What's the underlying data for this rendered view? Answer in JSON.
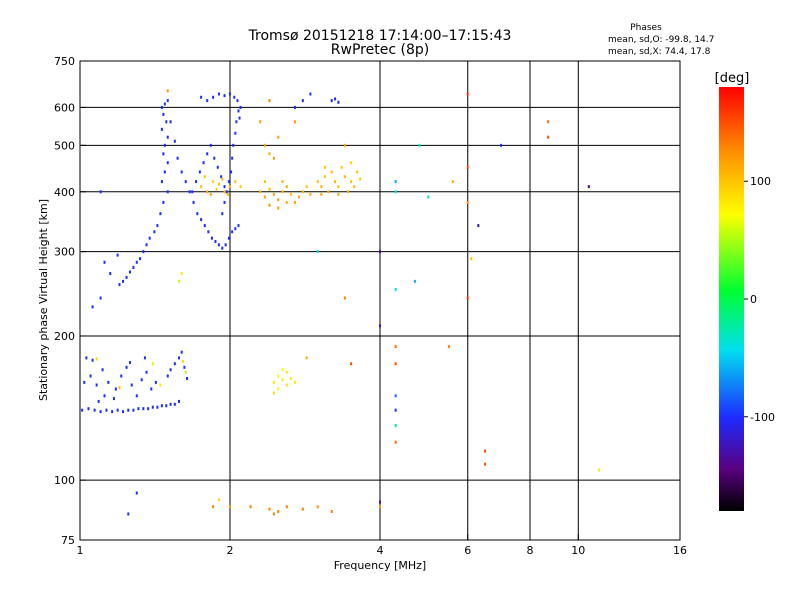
{
  "chart_data": {
    "type": "scatter",
    "title": "Tromsø 20151218 17:14:00–17:15:43",
    "subtitle": "RwPretec (8p)",
    "stats": {
      "heading": "Phases",
      "line1": "mean, sd,O: -99.8, 14.7",
      "line2": "mean, sd,X:  74.4, 17.8"
    },
    "xlabel": "Frequency [MHz]",
    "ylabel": "Stationary phase Virtual Height [km]",
    "x_scale": "log",
    "y_scale": "log",
    "xlim": [
      1,
      16
    ],
    "ylim": [
      75,
      750
    ],
    "x_ticks": [
      1,
      2,
      4,
      6,
      8,
      10,
      16
    ],
    "x_tick_labels": [
      "1",
      "2",
      "4",
      "6",
      "8",
      "10",
      "16"
    ],
    "x_grid": [
      2,
      4,
      6,
      8,
      10
    ],
    "y_ticks": [
      75,
      100,
      200,
      300,
      400,
      500,
      600,
      750
    ],
    "y_tick_labels": [
      "75",
      "100",
      "200",
      "300",
      "400",
      "500",
      "600",
      "750"
    ],
    "y_grid": [
      100,
      200,
      300,
      400,
      500,
      600
    ],
    "grid": true,
    "colorbar": {
      "label": "[deg]",
      "range": [
        -180,
        180
      ],
      "ticks": [
        100,
        0,
        -100
      ],
      "tick_labels": [
        "100",
        "0",
        "-100"
      ]
    },
    "points": [
      [
        1.01,
        140,
        -100
      ],
      [
        1.04,
        141,
        -100
      ],
      [
        1.07,
        140,
        -100
      ],
      [
        1.1,
        139,
        -100
      ],
      [
        1.13,
        140,
        -100
      ],
      [
        1.16,
        139,
        -100
      ],
      [
        1.19,
        140,
        -100
      ],
      [
        1.22,
        139,
        -100
      ],
      [
        1.25,
        140,
        -100
      ],
      [
        1.28,
        140,
        -100
      ],
      [
        1.31,
        141,
        -100
      ],
      [
        1.34,
        141,
        -100
      ],
      [
        1.37,
        141,
        -100
      ],
      [
        1.4,
        142,
        -100
      ],
      [
        1.43,
        142,
        -100
      ],
      [
        1.46,
        143,
        -100
      ],
      [
        1.49,
        143,
        -100
      ],
      [
        1.52,
        144,
        -100
      ],
      [
        1.55,
        144,
        -100
      ],
      [
        1.58,
        146,
        -100
      ],
      [
        1.02,
        160,
        -100
      ],
      [
        1.05,
        165,
        -100
      ],
      [
        1.08,
        158,
        -100
      ],
      [
        1.11,
        170,
        -100
      ],
      [
        1.14,
        160,
        -100
      ],
      [
        1.18,
        155,
        -100
      ],
      [
        1.21,
        165,
        -100
      ],
      [
        1.24,
        172,
        -100
      ],
      [
        1.27,
        158,
        -100
      ],
      [
        1.3,
        150,
        -100
      ],
      [
        1.33,
        162,
        -100
      ],
      [
        1.36,
        168,
        -100
      ],
      [
        1.39,
        155,
        -100
      ],
      [
        1.42,
        160,
        -100
      ],
      [
        1.03,
        180,
        -100
      ],
      [
        1.06,
        178,
        -100
      ],
      [
        1.12,
        150,
        -100
      ],
      [
        1.17,
        148,
        -100
      ],
      [
        1.26,
        176,
        -100
      ],
      [
        1.35,
        180,
        -100
      ],
      [
        1.5,
        165,
        -100
      ],
      [
        1.52,
        170,
        -100
      ],
      [
        1.55,
        175,
        -100
      ],
      [
        1.58,
        180,
        -100
      ],
      [
        1.6,
        185,
        -100
      ],
      [
        1.62,
        172,
        -100
      ],
      [
        1.64,
        163,
        -100
      ],
      [
        1.63,
        168,
        50
      ],
      [
        1.61,
        177,
        90
      ],
      [
        1.45,
        158,
        80
      ],
      [
        1.4,
        175,
        60
      ],
      [
        1.08,
        179,
        90
      ],
      [
        1.2,
        156,
        100
      ],
      [
        1.09,
        146,
        -100
      ],
      [
        1.46,
        600,
        -100
      ],
      [
        1.48,
        610,
        -100
      ],
      [
        1.5,
        620,
        -100
      ],
      [
        1.47,
        580,
        -100
      ],
      [
        1.49,
        560,
        -100
      ],
      [
        1.46,
        540,
        -100
      ],
      [
        1.5,
        520,
        -100
      ],
      [
        1.48,
        500,
        -100
      ],
      [
        1.47,
        480,
        -100
      ],
      [
        1.5,
        460,
        -100
      ],
      [
        1.48,
        440,
        -100
      ],
      [
        1.46,
        420,
        -100
      ],
      [
        1.5,
        400,
        -100
      ],
      [
        1.47,
        380,
        -100
      ],
      [
        1.45,
        360,
        -100
      ],
      [
        1.43,
        340,
        -100
      ],
      [
        1.41,
        330,
        -100
      ],
      [
        1.38,
        320,
        -100
      ],
      [
        1.36,
        310,
        -100
      ],
      [
        1.34,
        300,
        -100
      ],
      [
        1.32,
        290,
        -100
      ],
      [
        1.3,
        285,
        -100
      ],
      [
        1.28,
        278,
        -100
      ],
      [
        1.26,
        272,
        -100
      ],
      [
        1.24,
        265,
        -100
      ],
      [
        1.22,
        260,
        -100
      ],
      [
        1.2,
        256,
        -100
      ],
      [
        1.52,
        560,
        -100
      ],
      [
        1.55,
        510,
        -100
      ],
      [
        1.57,
        470,
        -100
      ],
      [
        1.6,
        440,
        -100
      ],
      [
        1.63,
        420,
        -100
      ],
      [
        1.66,
        400,
        -100
      ],
      [
        1.69,
        380,
        -100
      ],
      [
        1.72,
        360,
        -100
      ],
      [
        1.75,
        350,
        -100
      ],
      [
        1.78,
        340,
        -100
      ],
      [
        1.81,
        330,
        -100
      ],
      [
        1.84,
        320,
        -100
      ],
      [
        1.87,
        315,
        -100
      ],
      [
        1.9,
        310,
        -100
      ],
      [
        1.93,
        305,
        -100
      ],
      [
        1.96,
        310,
        -100
      ],
      [
        1.99,
        320,
        -100
      ],
      [
        2.02,
        330,
        -100
      ],
      [
        2.05,
        335,
        -100
      ],
      [
        2.08,
        340,
        -100
      ],
      [
        1.75,
        630,
        -100
      ],
      [
        1.8,
        620,
        -100
      ],
      [
        1.85,
        630,
        -100
      ],
      [
        1.9,
        640,
        -100
      ],
      [
        1.95,
        635,
        -100
      ],
      [
        2.0,
        640,
        -100
      ],
      [
        2.04,
        630,
        -100
      ],
      [
        2.07,
        620,
        -100
      ],
      [
        2.08,
        590,
        -100
      ],
      [
        2.06,
        560,
        -100
      ],
      [
        2.05,
        530,
        -100
      ],
      [
        2.03,
        500,
        -100
      ],
      [
        2.02,
        470,
        -100
      ],
      [
        2.01,
        440,
        -100
      ],
      [
        1.99,
        420,
        -100
      ],
      [
        1.97,
        400,
        -100
      ],
      [
        1.95,
        380,
        -100
      ],
      [
        1.93,
        360,
        -100
      ],
      [
        2.1,
        600,
        -100
      ],
      [
        2.09,
        570,
        -100
      ],
      [
        1.68,
        400,
        -100
      ],
      [
        1.71,
        420,
        -100
      ],
      [
        1.74,
        440,
        -100
      ],
      [
        1.77,
        460,
        -100
      ],
      [
        1.8,
        480,
        -100
      ],
      [
        1.83,
        500,
        -100
      ],
      [
        1.86,
        470,
        -100
      ],
      [
        1.89,
        450,
        -100
      ],
      [
        1.92,
        430,
        -100
      ],
      [
        1.95,
        410,
        -100
      ],
      [
        1.1,
        240,
        -100
      ],
      [
        1.15,
        270,
        -100
      ],
      [
        1.06,
        230,
        -100
      ],
      [
        1.12,
        285,
        -100
      ],
      [
        1.58,
        260,
        60
      ],
      [
        1.6,
        270,
        80
      ],
      [
        1.1,
        400,
        -100
      ],
      [
        1.19,
        295,
        -100
      ],
      [
        2.7,
        600,
        -100
      ],
      [
        2.8,
        620,
        -100
      ],
      [
        2.9,
        640,
        -100
      ],
      [
        3.2,
        620,
        -100
      ],
      [
        3.25,
        625,
        -100
      ],
      [
        3.3,
        615,
        -100
      ],
      [
        1.75,
        410,
        100
      ],
      [
        1.8,
        400,
        110
      ],
      [
        1.85,
        420,
        90
      ],
      [
        1.9,
        415,
        100
      ],
      [
        1.95,
        400,
        105
      ],
      [
        2.0,
        410,
        110
      ],
      [
        2.05,
        420,
        100
      ],
      [
        2.1,
        410,
        95
      ],
      [
        1.78,
        430,
        100
      ],
      [
        1.83,
        395,
        110
      ],
      [
        1.88,
        405,
        95
      ],
      [
        1.93,
        425,
        100
      ],
      [
        1.98,
        395,
        110
      ],
      [
        2.3,
        400,
        110
      ],
      [
        2.35,
        390,
        115
      ],
      [
        2.4,
        405,
        100
      ],
      [
        2.45,
        395,
        110
      ],
      [
        2.5,
        385,
        120
      ],
      [
        2.55,
        400,
        105
      ],
      [
        2.6,
        410,
        110
      ],
      [
        2.65,
        395,
        100
      ],
      [
        2.7,
        380,
        115
      ],
      [
        2.75,
        390,
        110
      ],
      [
        2.8,
        400,
        105
      ],
      [
        2.85,
        410,
        100
      ],
      [
        2.9,
        395,
        110
      ],
      [
        2.4,
        375,
        120
      ],
      [
        2.5,
        370,
        115
      ],
      [
        2.6,
        380,
        110
      ],
      [
        2.35,
        420,
        100
      ],
      [
        2.55,
        420,
        105
      ],
      [
        3.0,
        420,
        100
      ],
      [
        3.05,
        410,
        105
      ],
      [
        3.1,
        430,
        95
      ],
      [
        3.15,
        400,
        110
      ],
      [
        3.2,
        440,
        100
      ],
      [
        3.25,
        420,
        105
      ],
      [
        3.3,
        410,
        100
      ],
      [
        3.35,
        450,
        95
      ],
      [
        3.4,
        430,
        105
      ],
      [
        3.45,
        400,
        110
      ],
      [
        3.5,
        420,
        100
      ],
      [
        3.55,
        410,
        105
      ],
      [
        3.6,
        440,
        100
      ],
      [
        3.65,
        425,
        95
      ],
      [
        3.1,
        450,
        100
      ],
      [
        3.3,
        395,
        110
      ],
      [
        3.5,
        460,
        90
      ],
      [
        3.05,
        395,
        110
      ],
      [
        2.35,
        500,
        115
      ],
      [
        2.4,
        480,
        110
      ],
      [
        2.45,
        470,
        120
      ],
      [
        2.5,
        520,
        115
      ],
      [
        2.3,
        560,
        120
      ],
      [
        2.4,
        620,
        130
      ],
      [
        2.7,
        560,
        120
      ],
      [
        3.4,
        500,
        115
      ],
      [
        1.5,
        650,
        120
      ],
      [
        2.45,
        160,
        80
      ],
      [
        2.5,
        165,
        75
      ],
      [
        2.55,
        162,
        80
      ],
      [
        2.6,
        158,
        85
      ],
      [
        2.65,
        163,
        80
      ],
      [
        2.5,
        155,
        75
      ],
      [
        2.6,
        168,
        80
      ],
      [
        2.55,
        170,
        70
      ],
      [
        2.7,
        160,
        80
      ],
      [
        2.45,
        152,
        85
      ],
      [
        1.85,
        88,
        130
      ],
      [
        2.0,
        88,
        120
      ],
      [
        2.2,
        88,
        130
      ],
      [
        2.4,
        87,
        130
      ],
      [
        2.5,
        86,
        130
      ],
      [
        2.6,
        88,
        130
      ],
      [
        2.8,
        87,
        130
      ],
      [
        3.0,
        88,
        125
      ],
      [
        3.2,
        86,
        130
      ],
      [
        2.45,
        85,
        130
      ],
      [
        1.9,
        91,
        90
      ],
      [
        1.3,
        94,
        -100
      ],
      [
        1.25,
        85,
        -100
      ],
      [
        4.3,
        190,
        140
      ],
      [
        4.3,
        175,
        150
      ],
      [
        4.3,
        150,
        -80
      ],
      [
        4.3,
        140,
        -100
      ],
      [
        4.3,
        130,
        -20
      ],
      [
        4.3,
        120,
        140
      ],
      [
        4.3,
        420,
        -60
      ],
      [
        4.3,
        400,
        -40
      ],
      [
        4.3,
        250,
        -40
      ],
      [
        4.0,
        210,
        -120
      ],
      [
        4.0,
        300,
        -140
      ],
      [
        4.0,
        90,
        -140
      ],
      [
        4.0,
        88,
        120
      ],
      [
        5.5,
        190,
        130
      ],
      [
        5.6,
        420,
        110
      ],
      [
        6.0,
        640,
        160
      ],
      [
        6.0,
        450,
        150
      ],
      [
        6.0,
        380,
        130
      ],
      [
        6.1,
        290,
        100
      ],
      [
        6.0,
        240,
        160
      ],
      [
        6.3,
        340,
        -120
      ],
      [
        6.5,
        115,
        150
      ],
      [
        6.5,
        108,
        150
      ],
      [
        7.0,
        500,
        -100
      ],
      [
        8.7,
        560,
        140
      ],
      [
        8.7,
        520,
        150
      ],
      [
        10.5,
        410,
        -140
      ],
      [
        11.0,
        105,
        60
      ],
      [
        4.7,
        260,
        -60
      ],
      [
        4.8,
        500,
        -30
      ],
      [
        5.0,
        390,
        -20
      ],
      [
        3.4,
        240,
        130
      ],
      [
        3.0,
        300,
        -40
      ],
      [
        3.5,
        175,
        150
      ],
      [
        2.85,
        180,
        110
      ]
    ]
  }
}
